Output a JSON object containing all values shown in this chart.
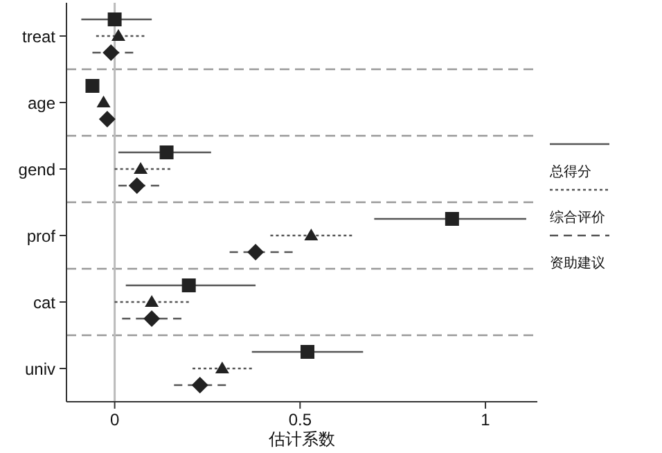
{
  "chart_data": {
    "type": "scatter",
    "orientation": "horizontal",
    "xlabel": "估计系数",
    "categories": [
      "treat",
      "age",
      "gend",
      "prof",
      "cat",
      "univ"
    ],
    "series": [
      {
        "name": "总得分",
        "color": "#222222",
        "marker": "square",
        "line_style": "solid",
        "values": [
          0.0,
          -0.06,
          0.14,
          0.91,
          0.2,
          0.52
        ],
        "errors": [
          [
            -0.09,
            0.1
          ],
          null,
          [
            0.01,
            0.26
          ],
          [
            0.7,
            1.11
          ],
          [
            0.03,
            0.38
          ],
          [
            0.37,
            0.67
          ]
        ]
      },
      {
        "name": "综合评价",
        "color": "#222222",
        "marker": "triangle",
        "line_style": "dotted",
        "values": [
          0.01,
          -0.03,
          0.07,
          0.53,
          0.1,
          0.29
        ],
        "errors": [
          [
            -0.05,
            0.08
          ],
          null,
          [
            0.0,
            0.15
          ],
          [
            0.42,
            0.64
          ],
          [
            0.0,
            0.2
          ],
          [
            0.21,
            0.37
          ]
        ]
      },
      {
        "name": "资助建议",
        "color": "#222222",
        "marker": "diamond",
        "line_style": "dashed",
        "values": [
          -0.01,
          -0.02,
          0.06,
          0.38,
          0.1,
          0.23
        ],
        "errors": [
          [
            -0.06,
            0.05
          ],
          null,
          [
            0.01,
            0.12
          ],
          [
            0.31,
            0.48
          ],
          [
            0.02,
            0.18
          ],
          [
            0.16,
            0.3
          ]
        ]
      }
    ],
    "xlim": [
      -0.13,
      1.14
    ],
    "xticks": [
      0,
      0.5,
      1
    ],
    "ref_lines": [
      {
        "axis": "x",
        "value": 0,
        "color": "#bbbbbb"
      }
    ],
    "grid": "y",
    "legend": "right"
  }
}
